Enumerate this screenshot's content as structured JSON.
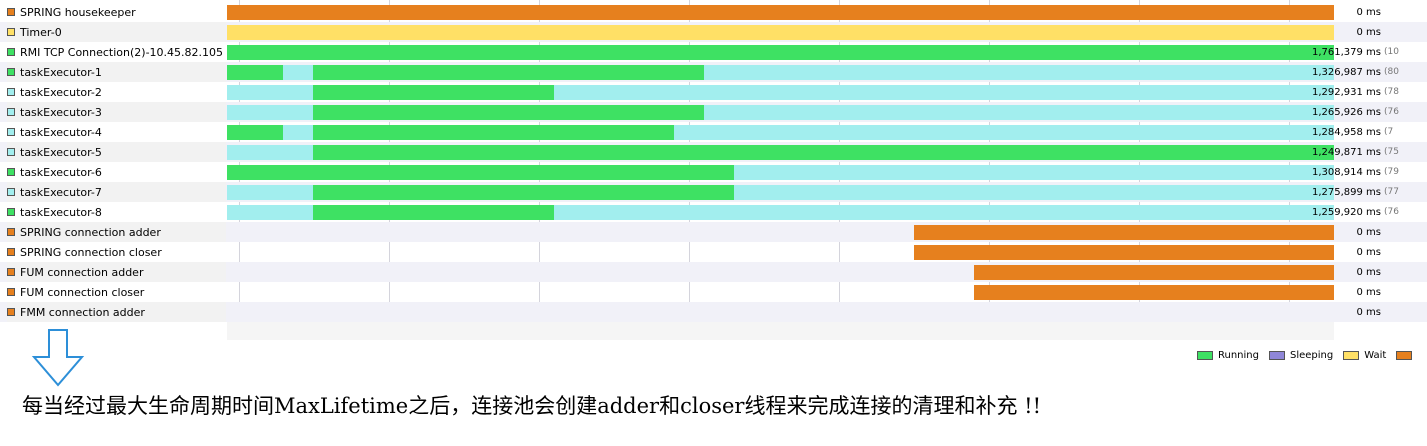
{
  "timeline": {
    "duration_ms": 1800000,
    "threads": [
      {
        "name": "SPRING housekeeper",
        "state": "waiting",
        "time": "0 ms",
        "pct": "",
        "segments": [
          {
            "state": "waiting",
            "start": 0,
            "end": 1.0
          }
        ]
      },
      {
        "name": "Timer-0",
        "state": "wait",
        "time": "0 ms",
        "pct": "",
        "segments": [
          {
            "state": "wait",
            "start": 0,
            "end": 1.0
          }
        ]
      },
      {
        "name": "RMI TCP Connection(2)-10.45.82.105",
        "state": "running",
        "time": "1,761,379 ms",
        "pct": "(10",
        "segments": [
          {
            "state": "running",
            "start": 0,
            "end": 1.0
          }
        ]
      },
      {
        "name": "taskExecutor-1",
        "state": "running",
        "time": "1,326,987 ms",
        "pct": "(80",
        "segments": [
          {
            "state": "running",
            "start": 0,
            "end": 0.051
          },
          {
            "state": "idle",
            "start": 0.051,
            "end": 0.078
          },
          {
            "state": "running",
            "start": 0.078,
            "end": 0.431
          },
          {
            "state": "idle",
            "start": 0.431,
            "end": 1.0
          }
        ]
      },
      {
        "name": "taskExecutor-2",
        "state": "idle",
        "time": "1,292,931 ms",
        "pct": "(78",
        "segments": [
          {
            "state": "idle",
            "start": 0,
            "end": 0.078
          },
          {
            "state": "running",
            "start": 0.078,
            "end": 0.295
          },
          {
            "state": "idle",
            "start": 0.295,
            "end": 1.0
          }
        ]
      },
      {
        "name": "taskExecutor-3",
        "state": "idle",
        "time": "1,265,926 ms",
        "pct": "(76",
        "segments": [
          {
            "state": "idle",
            "start": 0,
            "end": 0.078
          },
          {
            "state": "running",
            "start": 0.078,
            "end": 0.431
          },
          {
            "state": "idle",
            "start": 0.431,
            "end": 1.0
          }
        ]
      },
      {
        "name": "taskExecutor-4",
        "state": "idle",
        "time": "1,284,958 ms",
        "pct": "(7",
        "segments": [
          {
            "state": "running",
            "start": 0,
            "end": 0.051
          },
          {
            "state": "idle",
            "start": 0.051,
            "end": 0.078
          },
          {
            "state": "running",
            "start": 0.078,
            "end": 0.404
          },
          {
            "state": "idle",
            "start": 0.404,
            "end": 1.0
          }
        ]
      },
      {
        "name": "taskExecutor-5",
        "state": "idle",
        "time": "1,249,871 ms",
        "pct": "(75",
        "segments": [
          {
            "state": "idle",
            "start": 0,
            "end": 0.078
          },
          {
            "state": "running",
            "start": 0.078,
            "end": 1.0
          }
        ]
      },
      {
        "name": "taskExecutor-6",
        "state": "running",
        "time": "1,308,914 ms",
        "pct": "(79",
        "segments": [
          {
            "state": "running",
            "start": 0,
            "end": 0.458
          },
          {
            "state": "idle",
            "start": 0.458,
            "end": 1.0
          }
        ]
      },
      {
        "name": "taskExecutor-7",
        "state": "idle",
        "time": "1,275,899 ms",
        "pct": "(77",
        "segments": [
          {
            "state": "idle",
            "start": 0,
            "end": 0.078
          },
          {
            "state": "running",
            "start": 0.078,
            "end": 0.458
          },
          {
            "state": "idle",
            "start": 0.458,
            "end": 1.0
          }
        ]
      },
      {
        "name": "taskExecutor-8",
        "state": "running",
        "time": "1,259,920 ms",
        "pct": "(76",
        "segments": [
          {
            "state": "idle",
            "start": 0,
            "end": 0.078
          },
          {
            "state": "running",
            "start": 0.078,
            "end": 0.295
          },
          {
            "state": "idle",
            "start": 0.295,
            "end": 1.0
          }
        ]
      },
      {
        "name": "SPRING connection adder",
        "state": "waiting",
        "time": "0 ms",
        "pct": "",
        "segments": [
          {
            "state": "waiting",
            "start": 0.621,
            "end": 1.0
          }
        ]
      },
      {
        "name": "SPRING connection closer",
        "state": "waiting",
        "time": "0 ms",
        "pct": "",
        "segments": [
          {
            "state": "waiting",
            "start": 0.621,
            "end": 1.0
          }
        ]
      },
      {
        "name": "FUM connection adder",
        "state": "waiting",
        "time": "0 ms",
        "pct": "",
        "segments": [
          {
            "state": "waiting",
            "start": 0.675,
            "end": 1.0
          }
        ]
      },
      {
        "name": "FUM connection closer",
        "state": "waiting",
        "time": "0 ms",
        "pct": "",
        "segments": [
          {
            "state": "waiting",
            "start": 0.675,
            "end": 1.0
          }
        ]
      },
      {
        "name": "FMM connection adder",
        "state": "waiting",
        "time": "0 ms",
        "pct": "",
        "segments": []
      }
    ]
  },
  "legend": [
    {
      "label": "Running",
      "state": "running"
    },
    {
      "label": "Sleeping",
      "state": "sleeping"
    },
    {
      "label": "Wait",
      "state": "wait"
    },
    {
      "label": "",
      "state": "waiting"
    }
  ],
  "colors": {
    "running": "#3ee163",
    "sleeping": "#8f86d8",
    "wait": "#ffe066",
    "waiting": "#e6801e",
    "idle": "#a2eeee",
    "arrow": "#2d8fd8"
  },
  "caption": "每当经过最大生命周期时间MaxLifetime之后，连接池会创建adder和closer线程来完成连接的清理和补充 !!"
}
